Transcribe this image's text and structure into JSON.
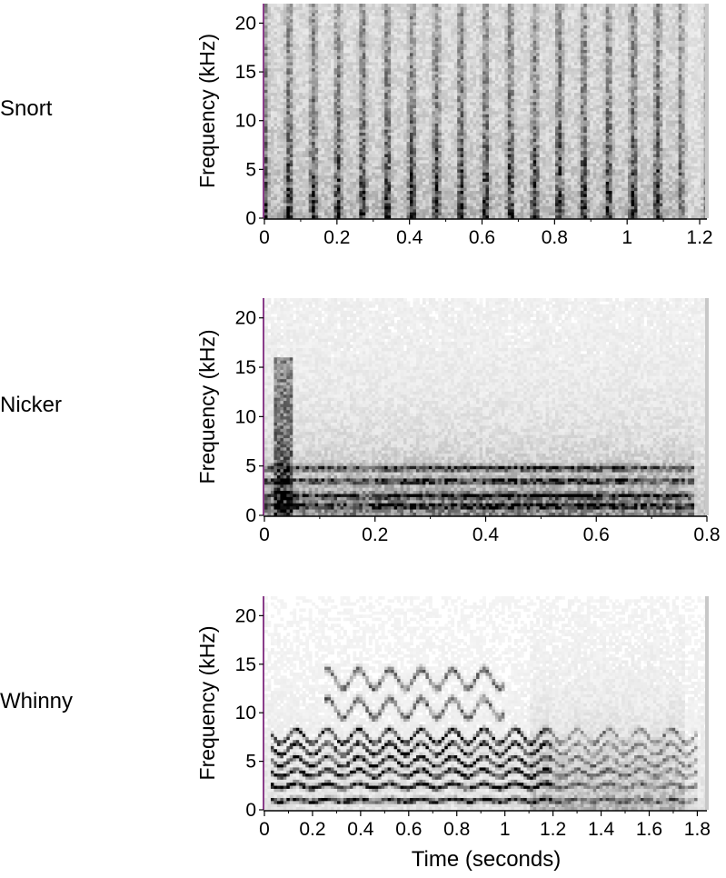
{
  "chart_data": [
    {
      "type": "heatmap",
      "title": "Snort",
      "ylabel": "Frequency (kHz)",
      "xlabel": "",
      "xlim": [
        0,
        1.22
      ],
      "ylim": [
        0,
        22
      ],
      "x_ticks": [
        0,
        0.2,
        0.4,
        0.6,
        0.8,
        1,
        1.2
      ],
      "y_ticks": [
        0,
        5,
        10,
        15,
        20
      ],
      "pulse_count": 18,
      "pattern": "broadband vertical pulses",
      "ink_color": "#000000"
    },
    {
      "type": "heatmap",
      "title": "Nicker",
      "ylabel": "Frequency (kHz)",
      "xlabel": "",
      "xlim": [
        0,
        0.8
      ],
      "ylim": [
        0,
        22
      ],
      "x_ticks": [
        0,
        0.2,
        0.4,
        0.6,
        0.8
      ],
      "y_ticks": [
        0,
        5,
        10,
        15,
        20
      ],
      "harmonic_bands_khz": [
        1,
        2,
        3.5,
        4.8
      ],
      "pattern": "low-frequency harmonic bands",
      "ink_color": "#000000"
    },
    {
      "type": "heatmap",
      "title": "Whinny",
      "ylabel": "Frequency (kHz)",
      "xlabel": "Time (seconds)",
      "xlim": [
        0,
        1.84
      ],
      "ylim": [
        0,
        22
      ],
      "x_ticks": [
        0,
        0.2,
        0.4,
        0.6,
        0.8,
        1,
        1.2,
        1.4,
        1.6,
        1.8
      ],
      "y_ticks": [
        0,
        5,
        10,
        15,
        20
      ],
      "harmonic_bands_khz": [
        1,
        2.5,
        3.8,
        5,
        6.3,
        7.6
      ],
      "pattern": "frequency-modulated harmonics",
      "ink_color": "#000000"
    }
  ]
}
